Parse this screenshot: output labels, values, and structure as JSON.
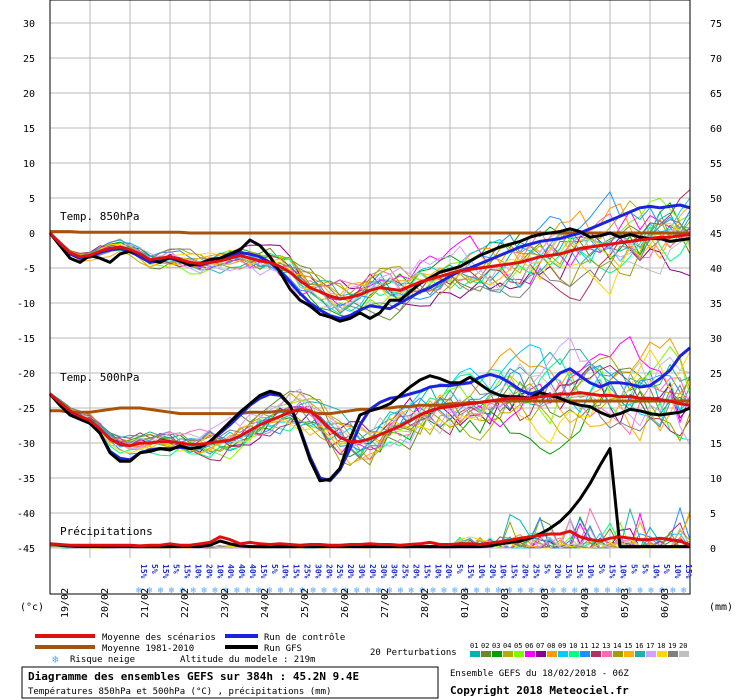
{
  "chart_data": {
    "type": "line",
    "days": [
      "19/02",
      "20/02",
      "21/02",
      "22/02",
      "23/02",
      "24/02",
      "25/02",
      "26/02",
      "27/02",
      "28/02",
      "01/03",
      "02/03",
      "03/03",
      "04/03",
      "05/03",
      "06/03"
    ],
    "temp_axis_ticks": [
      30,
      25,
      20,
      15,
      10,
      5,
      0,
      -5,
      -10,
      -15,
      -20,
      -25,
      -30,
      -35,
      -40,
      -45
    ],
    "precip_axis_ticks": [
      75,
      70,
      65,
      60,
      55,
      50,
      45,
      40,
      35,
      30,
      25,
      20,
      15,
      10,
      5,
      0
    ],
    "temp_ylim": [
      -50,
      33
    ],
    "x_step_hours": 6,
    "n_steps": 64,
    "labels": {
      "left_unit": "(°c)",
      "right_unit": "(mm)",
      "t850": "Temp. 850hPa",
      "t500": "Temp. 500hPa",
      "precip": "Précipitations"
    },
    "snow_risk": [
      "15%",
      "5%",
      "15%",
      "5%",
      "15%",
      "10%",
      "20%",
      "10%",
      "40%",
      "40%",
      "40%",
      "15%",
      "5%",
      "10%",
      "15%",
      "25%",
      "30%",
      "20%",
      "25%",
      "20%",
      "30%",
      "20%",
      "30%",
      "30%",
      "25%",
      "20%",
      "15%",
      "10%",
      "20%",
      "5%",
      "15%",
      "10%",
      "20%",
      "10%",
      "15%",
      "20%",
      "25%",
      "5%",
      "20%",
      "15%",
      "15%",
      "10%",
      "5%",
      "15%",
      "10%",
      "5%",
      "5%",
      "10%",
      "5%",
      "10%",
      "15%"
    ],
    "series": [
      {
        "name": "Moyenne des scénarios",
        "group": "t850",
        "values": [
          0,
          -1.5,
          -2.8,
          -3.4,
          -3.2,
          -2.6,
          -2.2,
          -2,
          -2.4,
          -3,
          -3.8,
          -3.6,
          -3.4,
          -3.8,
          -4.2,
          -4.4,
          -4.2,
          -4,
          -3.6,
          -3.2,
          -3.6,
          -4,
          -4.2,
          -4.8,
          -5.6,
          -6.8,
          -7.8,
          -8.4,
          -9,
          -9.4,
          -9.2,
          -8.8,
          -8.2,
          -7.8,
          -8,
          -8.2,
          -7.6,
          -7,
          -6.6,
          -6.2,
          -5.8,
          -5.4,
          -5.2,
          -5,
          -4.8,
          -4.6,
          -4.4,
          -4.2,
          -3.8,
          -3.4,
          -3.2,
          -3,
          -2.6,
          -2.2,
          -2,
          -1.8,
          -1.6,
          -1.4,
          -1.2,
          -1,
          -0.8,
          -0.6,
          -0.6,
          -0.4,
          -0.2
        ]
      },
      {
        "name": "Moyenne 1981-2010",
        "group": "t850",
        "values": [
          0.2,
          0.2,
          0.2,
          0.1,
          0.1,
          0.1,
          0.1,
          0.1,
          0.1,
          0.1,
          0.1,
          0.1,
          0.1,
          0.1,
          0,
          0,
          0,
          0,
          0,
          0,
          0,
          0,
          0,
          0,
          0,
          0,
          0,
          0,
          0,
          0,
          0,
          0,
          0,
          0,
          0,
          0,
          0,
          0,
          0,
          0,
          0,
          0,
          0,
          0,
          0,
          0,
          0,
          0,
          0,
          0,
          0,
          0,
          0,
          0,
          0,
          0,
          0,
          0,
          0,
          0,
          0,
          0,
          0,
          0,
          0
        ]
      },
      {
        "name": "Run de contrôle",
        "group": "t850",
        "values": [
          0,
          -1.8,
          -3,
          -3.6,
          -3.4,
          -2.8,
          -2.4,
          -2.2,
          -2.6,
          -3.4,
          -4.2,
          -4,
          -3.6,
          -4,
          -4.4,
          -4.6,
          -4.2,
          -3.8,
          -3.2,
          -2.8,
          -3,
          -3.4,
          -4.2,
          -5.4,
          -7,
          -8.6,
          -10,
          -11,
          -11.8,
          -12.2,
          -11.8,
          -11,
          -10.4,
          -10.6,
          -10.8,
          -10,
          -9.2,
          -8.4,
          -7.8,
          -7,
          -6.2,
          -5.4,
          -5,
          -4.4,
          -3.8,
          -3.2,
          -2.6,
          -2,
          -1.6,
          -1.2,
          -1,
          -0.8,
          -0.4,
          0,
          0.6,
          1.2,
          1.8,
          2.4,
          3,
          3.6,
          3.8,
          3.6,
          3.8,
          4,
          3.6
        ]
      },
      {
        "name": "Run GFS",
        "group": "t850",
        "values": [
          0,
          -1.8,
          -3.6,
          -4.2,
          -3.2,
          -3.6,
          -4.2,
          -3,
          -2.6,
          -3,
          -3.8,
          -4.2,
          -3.4,
          -4,
          -4.6,
          -4.4,
          -3.8,
          -3.6,
          -3,
          -2.4,
          -1,
          -1.8,
          -3.4,
          -5.6,
          -8,
          -9.6,
          -10.4,
          -11.6,
          -12,
          -12.6,
          -12.2,
          -11.4,
          -12.2,
          -11.4,
          -9.6,
          -9.6,
          -8.4,
          -7.2,
          -6.4,
          -5.6,
          -5.2,
          -4.8,
          -4,
          -3.2,
          -2.6,
          -2,
          -1.6,
          -1.2,
          -0.6,
          -0.2,
          0,
          0.2,
          0.6,
          0.2,
          -0.6,
          -0.4,
          0,
          -0.6,
          -0.2,
          -0.6,
          -0.8,
          -0.8,
          -1.2,
          -1,
          -0.8
        ]
      },
      {
        "name": "Moyenne des scénarios",
        "group": "t500",
        "values": [
          -23,
          -24.2,
          -25.4,
          -26.2,
          -26.8,
          -28,
          -29.4,
          -30.2,
          -30.4,
          -30,
          -30,
          -29.8,
          -29.8,
          -30,
          -30.2,
          -30.2,
          -30,
          -29.8,
          -29.6,
          -29,
          -28.2,
          -27.4,
          -26.8,
          -26.2,
          -25.6,
          -25.2,
          -25.4,
          -26.6,
          -28,
          -29.2,
          -29.8,
          -29.8,
          -29.4,
          -28.8,
          -28.2,
          -27.6,
          -26.8,
          -26,
          -25.4,
          -25,
          -24.8,
          -24.6,
          -24.4,
          -24.2,
          -24,
          -23.8,
          -23.6,
          -23.6,
          -23.6,
          -23.4,
          -23.2,
          -23,
          -23,
          -22.8,
          -23,
          -23.2,
          -23.2,
          -23.4,
          -23.4,
          -23.6,
          -23.6,
          -23.8,
          -24,
          -24.4,
          -24.6
        ]
      },
      {
        "name": "Moyenne 1981-2010",
        "group": "t500",
        "values": [
          -25.4,
          -25.4,
          -25.6,
          -25.6,
          -25.6,
          -25.4,
          -25.2,
          -25,
          -25,
          -25,
          -25.2,
          -25.4,
          -25.6,
          -25.8,
          -25.8,
          -25.8,
          -25.8,
          -25.8,
          -25.8,
          -25.8,
          -25.6,
          -25.6,
          -25.6,
          -25.4,
          -25.4,
          -25.4,
          -25.6,
          -25.8,
          -25.8,
          -25.6,
          -25.4,
          -25.2,
          -25.2,
          -25,
          -25,
          -24.8,
          -24.8,
          -24.6,
          -24.6,
          -24.6,
          -24.4,
          -24.4,
          -24.2,
          -24.2,
          -24,
          -24,
          -24,
          -24,
          -24,
          -24,
          -24,
          -24,
          -24,
          -24,
          -24,
          -24,
          -24,
          -24,
          -24,
          -24,
          -24,
          -24,
          -24,
          -24,
          -24
        ]
      },
      {
        "name": "Run de contrôle",
        "group": "t500",
        "values": [
          -23,
          -24.4,
          -25.8,
          -26.4,
          -27,
          -28.6,
          -31.2,
          -32.2,
          -32.4,
          -31.4,
          -31,
          -30.8,
          -30.8,
          -30.6,
          -30.8,
          -30.6,
          -29.8,
          -28.6,
          -27.4,
          -26,
          -24.6,
          -23.6,
          -23,
          -23.2,
          -24.6,
          -28,
          -32,
          -35,
          -35.4,
          -33.8,
          -30.8,
          -27.4,
          -25.2,
          -24.2,
          -23.6,
          -23.4,
          -23,
          -22.6,
          -22,
          -21.8,
          -21.8,
          -21.6,
          -21.4,
          -20.6,
          -20.2,
          -20.6,
          -21.4,
          -22.4,
          -23,
          -22.6,
          -21.4,
          -20,
          -19.4,
          -20.4,
          -21.4,
          -22,
          -21.4,
          -21.4,
          -21.6,
          -22,
          -21.8,
          -20.8,
          -19.6,
          -17.6,
          -16.4
        ]
      },
      {
        "name": "Run GFS",
        "group": "t500",
        "values": [
          -23,
          -24.6,
          -26,
          -26.6,
          -27.2,
          -28.6,
          -31.4,
          -32.6,
          -32.6,
          -31.4,
          -31.2,
          -30.8,
          -31,
          -30.4,
          -30.8,
          -30.6,
          -29.8,
          -28.4,
          -27,
          -25.6,
          -24.4,
          -23.2,
          -22.6,
          -23,
          -24.6,
          -28.2,
          -32.4,
          -35.4,
          -35.2,
          -33.6,
          -29.4,
          -26,
          -25.4,
          -25,
          -24.4,
          -23.2,
          -22,
          -21,
          -20.4,
          -20.8,
          -21.4,
          -21.4,
          -20.6,
          -21.6,
          -22.6,
          -23.2,
          -23.4,
          -23.4,
          -23.6,
          -22.8,
          -23.2,
          -23.6,
          -24.2,
          -24.6,
          -24.8,
          -25.6,
          -26.2,
          -25.8,
          -25.2,
          -25.4,
          -25.8,
          -26,
          -25.8,
          -25.6,
          -25
        ]
      },
      {
        "name": "Moyenne des scénarios",
        "group": "precip_mm",
        "values": [
          0.6,
          0.5,
          0.4,
          0.4,
          0.4,
          0.4,
          0.4,
          0.4,
          0.4,
          0.3,
          0.4,
          0.4,
          0.6,
          0.4,
          0.4,
          0.6,
          0.8,
          1.6,
          1.2,
          0.6,
          0.8,
          0.6,
          0.5,
          0.6,
          0.5,
          0.4,
          0.5,
          0.5,
          0.4,
          0.4,
          0.5,
          0.5,
          0.6,
          0.5,
          0.5,
          0.4,
          0.5,
          0.6,
          0.8,
          0.5,
          0.5,
          0.6,
          0.6,
          0.5,
          0.7,
          0.9,
          1.1,
          1.4,
          1.6,
          1.8,
          2,
          2,
          2.4,
          1.6,
          1.2,
          1,
          1.4,
          1.6,
          1.4,
          1.2,
          1.2,
          1.4,
          1.2,
          1,
          0.4
        ]
      },
      {
        "name": "Run GFS",
        "group": "precip_mm",
        "values": [
          0.6,
          0.4,
          0.3,
          0.2,
          0.2,
          0.2,
          0.2,
          0.2,
          0.2,
          0.2,
          0.2,
          0.2,
          0.2,
          0.2,
          0.2,
          0.2,
          0.4,
          1,
          0.6,
          0.3,
          0.2,
          0.2,
          0.2,
          0.2,
          0.2,
          0.2,
          0.2,
          0.2,
          0.2,
          0.2,
          0.2,
          0.2,
          0.2,
          0.2,
          0.2,
          0.2,
          0.2,
          0.2,
          0.2,
          0.2,
          0.2,
          0.2,
          0.2,
          0.2,
          0.3,
          0.6,
          0.8,
          1,
          1.4,
          2,
          2.8,
          3.8,
          5.2,
          7,
          9.2,
          11.8,
          14.2,
          0.2,
          0.2,
          0.2,
          0.2,
          0.2,
          0.2,
          0.2,
          0.2
        ]
      }
    ],
    "legend": {
      "mean": {
        "label": "Moyenne des scénarios",
        "color": "#e01010"
      },
      "clim": {
        "label": "Moyenne 1981-2010",
        "color": "#a8520a"
      },
      "control": {
        "label": "Run de contrôle",
        "color": "#1a23e0"
      },
      "gfs": {
        "label": "Run GFS",
        "color": "#000000"
      },
      "snow": {
        "label": "Risque neige"
      },
      "perturb": {
        "label": "20 Perturbations"
      },
      "perturb_numbers": [
        "01",
        "02",
        "03",
        "04",
        "05",
        "06",
        "07",
        "08",
        "09",
        "10",
        "11",
        "12",
        "13",
        "14",
        "15",
        "16",
        "17",
        "18",
        "19",
        "20"
      ],
      "perturb_colors": [
        "#00b4b4",
        "#6a8a2a",
        "#00a000",
        "#b0b000",
        "#7cfc00",
        "#ff00ff",
        "#8b008b",
        "#ff9900",
        "#00ccff",
        "#00ff7f",
        "#1e90ff",
        "#b03060",
        "#ff69b4",
        "#a0a000",
        "#ffb000",
        "#20b2aa",
        "#d2a0ff",
        "#ffd700",
        "#808080",
        "#c0c0c0"
      ]
    },
    "altitude_text": "Altitude du modele : 219m",
    "title": "Diagramme des ensembles GEFS sur 384h : 45.2N 9.4E",
    "subtitle": "Températures 850hPa et 500hPa (°C) , précipitations (mm)",
    "run_info": "Ensemble GEFS du 18/02/2018 - 06Z",
    "copyright": "Copyright 2018 Meteociel.fr"
  }
}
